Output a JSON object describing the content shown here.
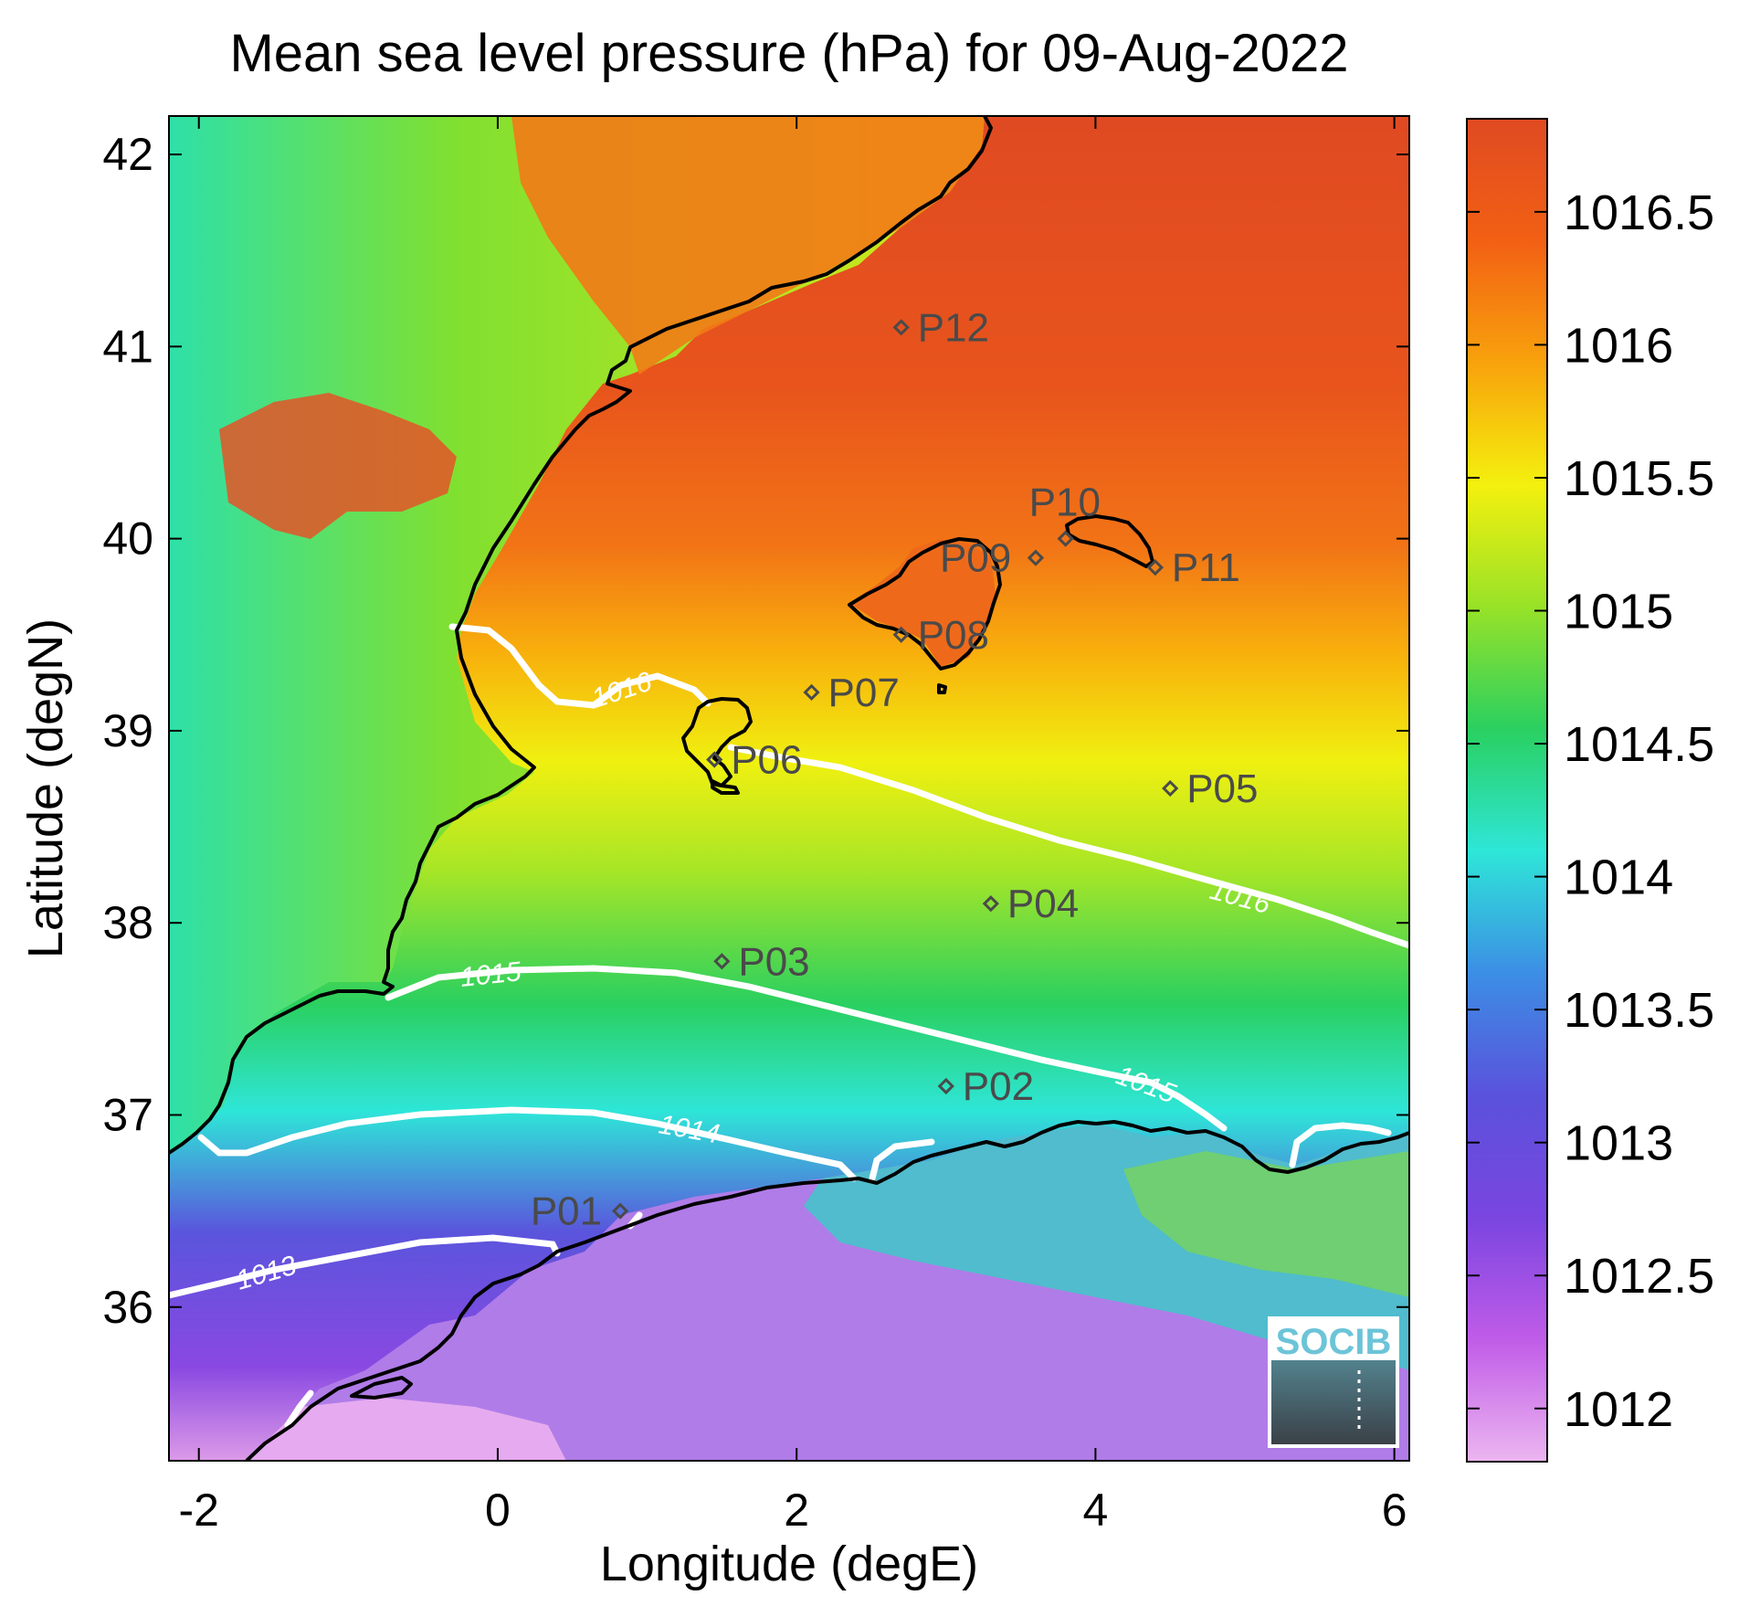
{
  "title": "Mean sea level pressure (hPa) for 09-Aug-2022",
  "axes": {
    "xlabel": "Longitude (degE)",
    "ylabel": "Latitude (degN)",
    "xlim": [
      -2.2,
      6.1
    ],
    "ylim": [
      35.2,
      42.2
    ],
    "xticks": [
      "-2",
      "0",
      "2",
      "4",
      "6"
    ],
    "yticks": [
      "36",
      "37",
      "38",
      "39",
      "40",
      "41",
      "42"
    ]
  },
  "colorbar": {
    "range": [
      1011.8,
      1016.85
    ],
    "ticks": [
      "1012",
      "1012.5",
      "1013",
      "1013.5",
      "1014",
      "1014.5",
      "1015",
      "1015.5",
      "1016",
      "1016.5"
    ],
    "colormap": [
      "#ecb6f0",
      "#c05ce8",
      "#7a45e0",
      "#5a52dc",
      "#3c8ee4",
      "#2ee6d8",
      "#2ad060",
      "#98e228",
      "#f4f00e",
      "#f8a20c",
      "#f26014",
      "#e04a22"
    ]
  },
  "contours": [
    {
      "level": "1013",
      "color": "#ffffff"
    },
    {
      "level": "1014",
      "color": "#ffffff"
    },
    {
      "level": "1015",
      "color": "#ffffff"
    },
    {
      "level": "1016",
      "color": "#ffffff"
    }
  ],
  "stations": [
    {
      "name": "P01",
      "lon": 0.82,
      "lat": 36.5
    },
    {
      "name": "P02",
      "lon": 3.0,
      "lat": 37.15
    },
    {
      "name": "P03",
      "lon": 1.5,
      "lat": 37.8
    },
    {
      "name": "P04",
      "lon": 3.3,
      "lat": 38.1
    },
    {
      "name": "P05",
      "lon": 4.5,
      "lat": 38.7
    },
    {
      "name": "P06",
      "lon": 1.45,
      "lat": 38.85
    },
    {
      "name": "P07",
      "lon": 2.1,
      "lat": 39.2
    },
    {
      "name": "P08",
      "lon": 2.7,
      "lat": 39.5
    },
    {
      "name": "P09",
      "lon": 3.6,
      "lat": 39.9
    },
    {
      "name": "P10",
      "lon": 3.8,
      "lat": 40.0
    },
    {
      "name": "P11",
      "lon": 4.4,
      "lat": 39.85
    },
    {
      "name": "P12",
      "lon": 2.7,
      "lat": 41.1
    }
  ],
  "logo": {
    "text": "SOCIB",
    "color": "#6cc4d8"
  }
}
